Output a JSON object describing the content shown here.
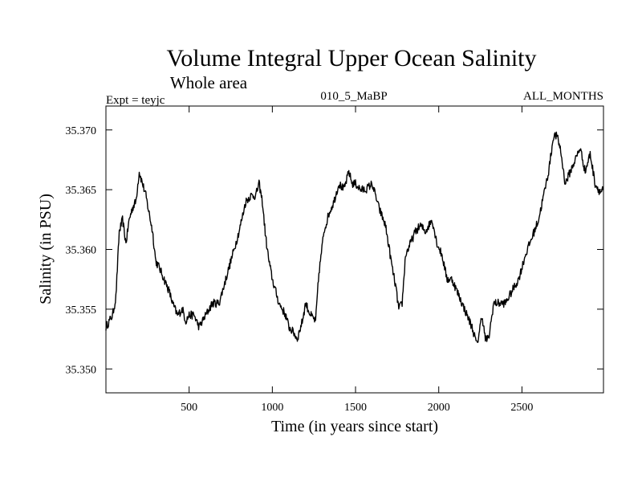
{
  "chart_data": {
    "type": "line",
    "title": "Volume Integral Upper Ocean Salinity",
    "subtitle": "Whole area",
    "left_label": "Expt = teyjc",
    "center_label": "010_5_MaBP",
    "right_label": "ALL_MONTHS",
    "xlabel": "Time (in years since start)",
    "ylabel": "Salinity (in PSU)",
    "xlim": [
      0,
      2990
    ],
    "ylim": [
      35.348,
      35.372
    ],
    "xticks": [
      500,
      1000,
      1500,
      2000,
      2500
    ],
    "yticks": [
      35.35,
      35.355,
      35.36,
      35.365,
      35.37
    ],
    "xtick_labels": [
      "500",
      "1000",
      "1500",
      "2000",
      "2500"
    ],
    "ytick_labels": [
      "35.350",
      "35.355",
      "35.360",
      "35.365",
      "35.370"
    ],
    "series": [
      {
        "name": "salinity",
        "color": "#000000",
        "x": [
          0,
          40,
          60,
          80,
          100,
          120,
          140,
          160,
          180,
          200,
          220,
          240,
          260,
          280,
          300,
          320,
          350,
          380,
          400,
          430,
          460,
          480,
          500,
          530,
          560,
          600,
          640,
          680,
          720,
          760,
          800,
          840,
          870,
          900,
          920,
          940,
          960,
          980,
          1000,
          1040,
          1080,
          1100,
          1130,
          1150,
          1180,
          1200,
          1230,
          1260,
          1280,
          1310,
          1340,
          1370,
          1400,
          1430,
          1460,
          1480,
          1500,
          1530,
          1560,
          1600,
          1640,
          1680,
          1720,
          1740,
          1760,
          1780,
          1800,
          1830,
          1860,
          1890,
          1920,
          1960,
          1990,
          2020,
          2050,
          2080,
          2110,
          2140,
          2170,
          2200,
          2230,
          2260,
          2280,
          2300,
          2330,
          2360,
          2400,
          2440,
          2480,
          2520,
          2560,
          2600,
          2630,
          2660,
          2690,
          2710,
          2730,
          2760,
          2790,
          2820,
          2850,
          2880,
          2910,
          2940,
          2970,
          2990
        ],
        "values": [
          35.3535,
          35.3545,
          35.356,
          35.3615,
          35.3625,
          35.3605,
          35.3625,
          35.3635,
          35.364,
          35.3665,
          35.3655,
          35.3645,
          35.363,
          35.3615,
          35.359,
          35.3585,
          35.3575,
          35.3565,
          35.3555,
          35.3545,
          35.355,
          35.354,
          35.3545,
          35.3545,
          35.3535,
          35.3545,
          35.3555,
          35.3555,
          35.3575,
          35.3595,
          35.3615,
          35.364,
          35.3645,
          35.3645,
          35.3655,
          35.364,
          35.361,
          35.359,
          35.3575,
          35.3555,
          35.3545,
          35.3535,
          35.353,
          35.3525,
          35.354,
          35.3555,
          35.3545,
          35.354,
          35.358,
          35.3615,
          35.363,
          35.364,
          35.3655,
          35.365,
          35.3665,
          35.3655,
          35.3655,
          35.365,
          35.365,
          35.3655,
          35.3635,
          35.362,
          35.3585,
          35.357,
          35.355,
          35.3555,
          35.3595,
          35.3605,
          35.3615,
          35.362,
          35.3615,
          35.3625,
          35.3605,
          35.3595,
          35.3575,
          35.3575,
          35.3565,
          35.3555,
          35.3545,
          35.3535,
          35.352,
          35.3545,
          35.3525,
          35.3525,
          35.3555,
          35.3555,
          35.3555,
          35.3565,
          35.3575,
          35.3595,
          35.361,
          35.3625,
          35.3645,
          35.3665,
          35.3695,
          35.3695,
          35.3685,
          35.3655,
          35.3665,
          35.3675,
          35.3685,
          35.3665,
          35.368,
          35.3655,
          35.3648,
          35.365
        ]
      }
    ]
  }
}
